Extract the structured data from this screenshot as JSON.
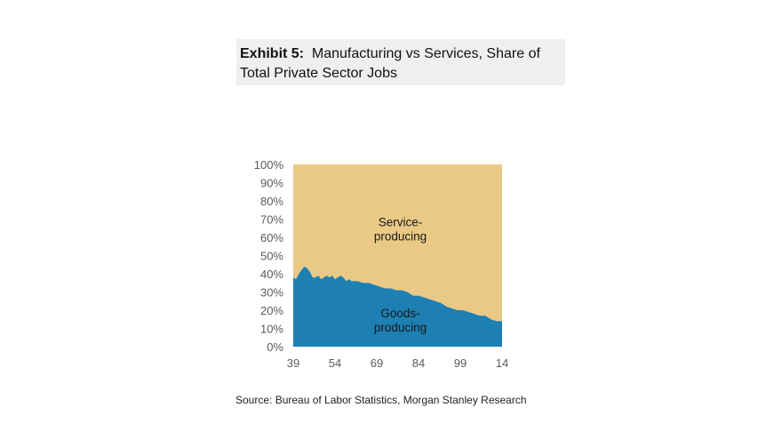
{
  "exhibit": {
    "label": "Exhibit 5:",
    "title": "Manufacturing vs Services, Share of Total Private Sector Jobs"
  },
  "source": "Source: Bureau of Labor Statistics, Morgan Stanley Research",
  "colors": {
    "services": "#e9c985",
    "goods": "#1e7fb3"
  },
  "chart_data": {
    "type": "area",
    "stacked": true,
    "title": "Manufacturing vs Services, Share of Total Private Sector Jobs",
    "xlabel": "",
    "ylabel": "",
    "x_ticks": [
      "39",
      "54",
      "69",
      "84",
      "99",
      "14"
    ],
    "y_ticks": [
      "0%",
      "10%",
      "20%",
      "30%",
      "40%",
      "50%",
      "60%",
      "70%",
      "80%",
      "90%",
      "100%"
    ],
    "ylim": [
      0,
      100
    ],
    "xlim": [
      1939,
      2014
    ],
    "annotations": {
      "services": [
        "Service-",
        "producing"
      ],
      "goods": [
        "Goods-",
        "producing"
      ]
    },
    "x": [
      1939,
      1940,
      1941,
      1942,
      1943,
      1944,
      1945,
      1946,
      1947,
      1948,
      1949,
      1950,
      1951,
      1952,
      1953,
      1954,
      1955,
      1956,
      1957,
      1958,
      1959,
      1960,
      1962,
      1964,
      1966,
      1968,
      1970,
      1972,
      1974,
      1976,
      1978,
      1980,
      1982,
      1984,
      1986,
      1988,
      1990,
      1992,
      1994,
      1996,
      1998,
      2000,
      2002,
      2004,
      2006,
      2008,
      2010,
      2012,
      2014
    ],
    "series": [
      {
        "name": "Goods-producing",
        "values": [
          38,
          37,
          40,
          42,
          44,
          43,
          41,
          38,
          38,
          39,
          37,
          38,
          39,
          38,
          39,
          37,
          38,
          39,
          38,
          36,
          37,
          36,
          36,
          35,
          35,
          34,
          33,
          32,
          32,
          31,
          31,
          30,
          28,
          28,
          27,
          26,
          25,
          24,
          22,
          21,
          20,
          20,
          19,
          18,
          17,
          17,
          15,
          14,
          14
        ]
      },
      {
        "name": "Service-producing",
        "values": [
          62,
          63,
          60,
          58,
          56,
          57,
          59,
          62,
          62,
          61,
          63,
          62,
          61,
          62,
          61,
          63,
          62,
          61,
          62,
          64,
          63,
          64,
          64,
          65,
          65,
          66,
          67,
          68,
          68,
          69,
          69,
          70,
          72,
          72,
          73,
          74,
          75,
          76,
          78,
          79,
          80,
          80,
          81,
          82,
          83,
          83,
          85,
          86,
          86
        ]
      }
    ]
  }
}
